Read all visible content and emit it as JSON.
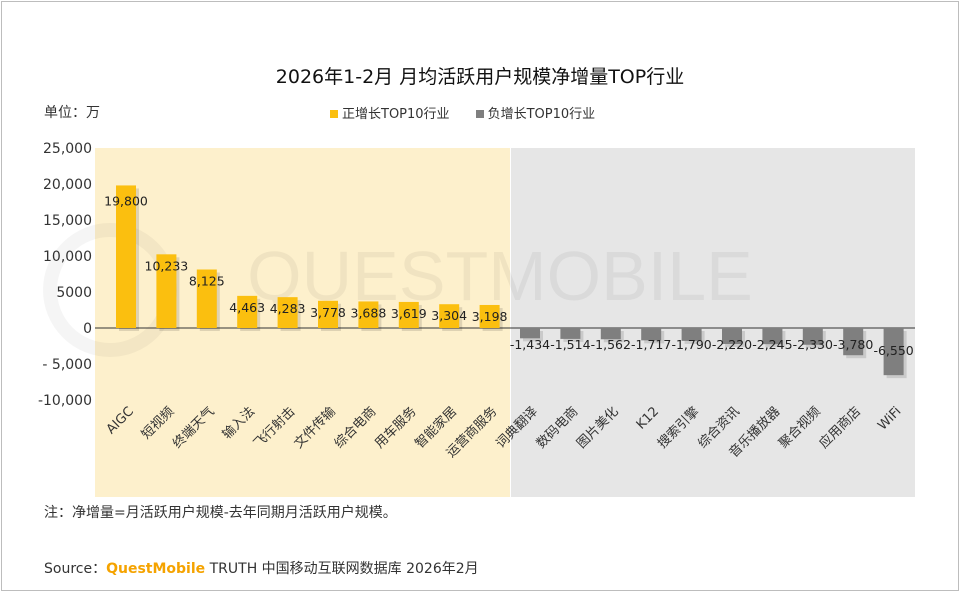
{
  "title": "2026年1-2月 月均活跃用户规模净增量TOP行业",
  "unit": "单位：万",
  "note": "注：净增量=月活跃用户规模-去年同期月活跃用户规模。",
  "source": {
    "label": "Source：",
    "brand": "QuestMobile",
    "rest": "TRUTH 中国移动互联网数据库 2026年2月"
  },
  "watermark": "QUESTMOBILE",
  "chart_data": {
    "type": "bar",
    "title": "2026年1-2月 月均活跃用户规模净增量TOP行业",
    "ylim": [
      -10000,
      25000
    ],
    "yticks": [
      "25,000",
      "20,000",
      "15,000",
      "10,000",
      "5000",
      "0",
      "- 5,000",
      "-10,000"
    ],
    "ytick_values": [
      25000,
      20000,
      15000,
      10000,
      5000,
      0,
      -5000,
      -10000
    ],
    "legend_position": "top",
    "series": [
      {
        "name": "正增长TOP10行业",
        "color": "#fbbf0f",
        "background": "#fdf0cc",
        "categories": [
          "AIGC",
          "短视频",
          "终端天气",
          "输入法",
          "飞行射击",
          "文件传输",
          "综合电商",
          "用车服务",
          "智能家居",
          "运营商服务"
        ],
        "values": [
          19800,
          10233,
          8125,
          4463,
          4283,
          3778,
          3688,
          3619,
          3304,
          3198
        ],
        "labels": [
          "19,800",
          "10,233",
          "8,125",
          "4,463",
          "4,283",
          "3,778",
          "3,688",
          "3,619",
          "3,304",
          "3,198"
        ]
      },
      {
        "name": "负增长TOP10行业",
        "color": "#7f7f7f",
        "background": "#e6e6e6",
        "categories": [
          "词典翻译",
          "数码电商",
          "图片美化",
          "K12",
          "搜索引擎",
          "综合资讯",
          "音乐播放器",
          "聚合视频",
          "应用商店",
          "WiFi"
        ],
        "values": [
          -1434,
          -1514,
          -1562,
          -1717,
          -1790,
          -2220,
          -2245,
          -2330,
          -3780,
          -6550
        ],
        "labels": [
          "-1,434",
          "-1,514",
          "-1,562",
          "-1,717",
          "-1,790",
          "-2,220",
          "-2,245",
          "-2,330",
          "-3,780",
          "-6,550"
        ]
      }
    ]
  }
}
